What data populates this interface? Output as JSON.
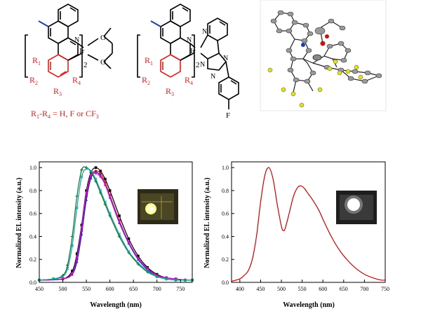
{
  "structures": {
    "left_ligand_label": "2",
    "right_ligand_label": "2",
    "ir_label": "Ir",
    "substituents": [
      "R1",
      "R2",
      "R3",
      "R4"
    ],
    "substituent_caption": "R1-R4 = H, F or CF3",
    "acac_atoms": [
      "O",
      "O"
    ],
    "pyridyl_atoms": [
      "N",
      "N",
      "N",
      "N"
    ],
    "fluoro_atom": "F",
    "colors": {
      "substituent": "#e02020",
      "methyl": "#1a3fb0",
      "bond": "#000000"
    }
  },
  "chart_data": [
    {
      "type": "line",
      "xlabel": "Wavelength (nm)",
      "ylabel": "Normalized EL intensity (a.u.)",
      "xlim": [
        450,
        775
      ],
      "ylim": [
        0,
        1.05
      ],
      "xticks": [
        450,
        500,
        550,
        600,
        650,
        700,
        750
      ],
      "yticks": [
        0.0,
        0.2,
        0.4,
        0.6,
        0.8,
        1.0
      ],
      "series": [
        {
          "color": "#000000",
          "marker": "square",
          "x": [
            450,
            500,
            520,
            530,
            540,
            550,
            560,
            570,
            580,
            590,
            600,
            620,
            640,
            660,
            680,
            700,
            720,
            740,
            760,
            775
          ],
          "y": [
            0.02,
            0.03,
            0.1,
            0.25,
            0.5,
            0.8,
            0.96,
            1.0,
            0.97,
            0.9,
            0.8,
            0.58,
            0.38,
            0.23,
            0.13,
            0.07,
            0.04,
            0.03,
            0.02,
            0.02
          ]
        },
        {
          "color": "#e01010",
          "marker": "circle",
          "x": [
            450,
            500,
            520,
            530,
            540,
            550,
            560,
            570,
            580,
            590,
            600,
            620,
            640,
            660,
            680,
            700,
            720,
            740,
            760,
            775
          ],
          "y": [
            0.02,
            0.03,
            0.08,
            0.2,
            0.45,
            0.75,
            0.93,
            0.97,
            0.95,
            0.87,
            0.76,
            0.54,
            0.35,
            0.21,
            0.12,
            0.06,
            0.04,
            0.03,
            0.02,
            0.02
          ]
        },
        {
          "color": "#2020d0",
          "marker": "triangle",
          "x": [
            450,
            500,
            520,
            530,
            540,
            550,
            560,
            570,
            580,
            590,
            600,
            620,
            640,
            660,
            680,
            700,
            720,
            740,
            760,
            775
          ],
          "y": [
            0.02,
            0.03,
            0.07,
            0.18,
            0.42,
            0.72,
            0.91,
            0.96,
            0.93,
            0.85,
            0.74,
            0.52,
            0.34,
            0.2,
            0.11,
            0.06,
            0.04,
            0.03,
            0.02,
            0.02
          ]
        },
        {
          "color": "#d010d0",
          "marker": "diamond",
          "x": [
            450,
            500,
            520,
            530,
            540,
            550,
            560,
            570,
            580,
            590,
            600,
            620,
            640,
            660,
            680,
            700,
            720,
            740,
            760,
            775
          ],
          "y": [
            0.02,
            0.03,
            0.08,
            0.22,
            0.48,
            0.78,
            0.94,
            0.95,
            0.92,
            0.85,
            0.75,
            0.53,
            0.35,
            0.21,
            0.12,
            0.06,
            0.04,
            0.03,
            0.02,
            0.02
          ]
        },
        {
          "color": "#107030",
          "marker": "plus",
          "x": [
            450,
            480,
            500,
            510,
            520,
            530,
            540,
            550,
            560,
            570,
            580,
            590,
            600,
            620,
            640,
            660,
            680,
            700,
            720,
            740,
            760,
            775
          ],
          "y": [
            0.02,
            0.03,
            0.06,
            0.15,
            0.4,
            0.75,
            0.98,
            1.0,
            0.96,
            0.88,
            0.78,
            0.68,
            0.58,
            0.4,
            0.26,
            0.16,
            0.09,
            0.05,
            0.03,
            0.02,
            0.02,
            0.02
          ]
        },
        {
          "color": "#10a0a0",
          "marker": "cross",
          "x": [
            450,
            480,
            500,
            510,
            520,
            530,
            540,
            550,
            560,
            570,
            580,
            590,
            600,
            620,
            640,
            660,
            680,
            700,
            720,
            740,
            760,
            775
          ],
          "y": [
            0.02,
            0.03,
            0.05,
            0.12,
            0.32,
            0.65,
            0.92,
            0.99,
            0.97,
            0.9,
            0.8,
            0.7,
            0.6,
            0.42,
            0.27,
            0.17,
            0.1,
            0.05,
            0.03,
            0.02,
            0.02,
            0.02
          ]
        }
      ]
    },
    {
      "type": "line",
      "xlabel": "Wavelength (nm)",
      "ylabel": "Normalized EL intensity (a.u.)",
      "xlim": [
        380,
        750
      ],
      "ylim": [
        0,
        1.05
      ],
      "xticks": [
        400,
        450,
        500,
        550,
        600,
        650,
        700,
        750
      ],
      "yticks": [
        0.0,
        0.2,
        0.4,
        0.6,
        0.8,
        1.0
      ],
      "series": [
        {
          "color": "#cc0000",
          "x": [
            380,
            400,
            410,
            420,
            430,
            440,
            450,
            460,
            470,
            480,
            490,
            500,
            505,
            510,
            520,
            530,
            540,
            548,
            555,
            565,
            575,
            590,
            600,
            620,
            640,
            660,
            680,
            700,
            720,
            740,
            750
          ],
          "y": [
            0.01,
            0.03,
            0.06,
            0.1,
            0.2,
            0.4,
            0.7,
            0.93,
            1.0,
            0.9,
            0.68,
            0.49,
            0.45,
            0.48,
            0.62,
            0.76,
            0.83,
            0.84,
            0.82,
            0.77,
            0.72,
            0.63,
            0.55,
            0.4,
            0.28,
            0.19,
            0.12,
            0.07,
            0.04,
            0.02,
            0.02
          ]
        }
      ]
    }
  ]
}
